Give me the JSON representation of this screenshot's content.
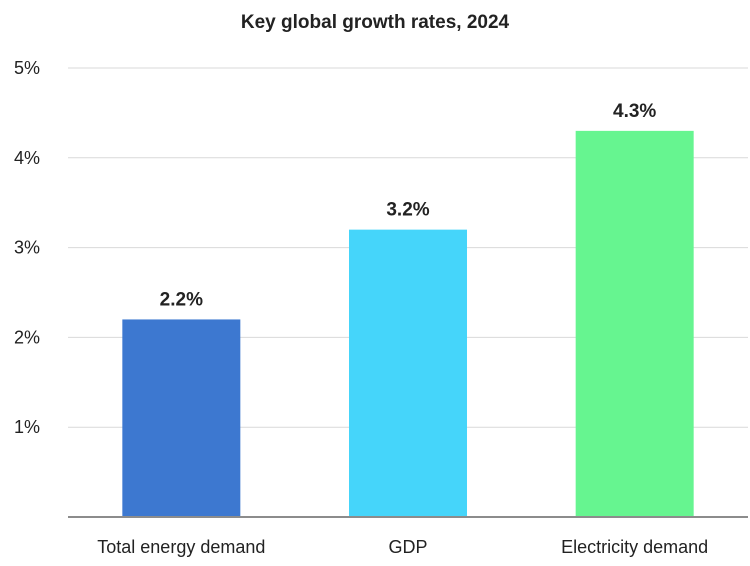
{
  "chart_data": {
    "type": "bar",
    "title": "Key global growth rates, 2024",
    "categories": [
      "Total energy demand",
      "GDP",
      "Electricity demand"
    ],
    "values": [
      2.2,
      3.2,
      4.3
    ],
    "value_labels": [
      "2.2%",
      "3.2%",
      "4.3%"
    ],
    "colors": [
      "#3d78d0",
      "#45d5fa",
      "#66f590"
    ],
    "ylim": [
      0,
      5
    ],
    "yticks": [
      1,
      2,
      3,
      4,
      5
    ],
    "ytick_labels": [
      "1%",
      "2%",
      "3%",
      "4%",
      "5%"
    ],
    "xlabel": "",
    "ylabel": "",
    "grid": true,
    "legend": "none"
  }
}
